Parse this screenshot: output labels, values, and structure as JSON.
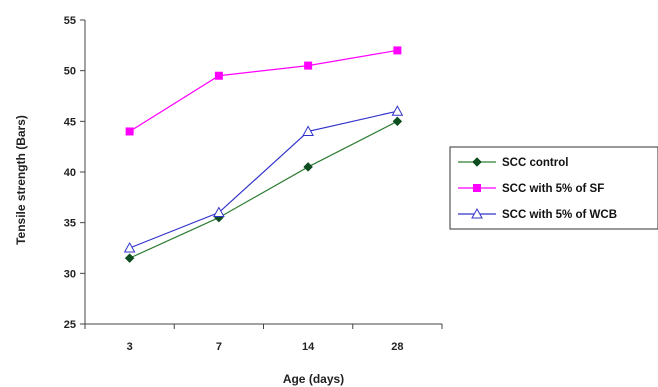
{
  "chart_data": {
    "type": "line",
    "categories": [
      "3",
      "7",
      "14",
      "28"
    ],
    "xlabel": "Age (days)",
    "ylabel": "Tensile strength (Bars)",
    "ylim": [
      25,
      55
    ],
    "yticks": [
      25,
      30,
      35,
      40,
      45,
      50,
      55
    ],
    "grid": false,
    "legend_position": "right",
    "series": [
      {
        "name": "SCC control",
        "values": [
          31.5,
          35.5,
          40.5,
          45
        ],
        "color": "#2e7d32",
        "marker": "diamond"
      },
      {
        "name": "SCC with 5% of SF",
        "values": [
          44,
          49.5,
          50.5,
          52
        ],
        "color": "#ff00ff",
        "marker": "square"
      },
      {
        "name": "SCC with 5% of WCB",
        "values": [
          32.5,
          36,
          44,
          46
        ],
        "color": "#3333cc",
        "marker": "triangle"
      }
    ]
  }
}
